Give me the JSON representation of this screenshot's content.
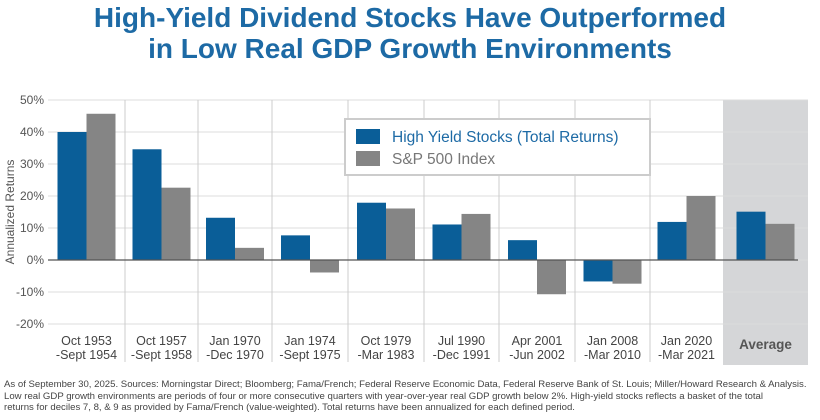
{
  "title_lines": [
    "High-Yield Dividend Stocks Have Outperformed",
    "in Low Real GDP Growth Environments"
  ],
  "chart_data": {
    "type": "bar",
    "title": "High-Yield Dividend Stocks Have Outperformed in Low Real GDP Growth Environments",
    "ylabel": "Annualized Returns",
    "xlabel": "",
    "ylim": [
      -20,
      50
    ],
    "yticks": [
      "50%",
      "40%",
      "30%",
      "20%",
      "10%",
      "0%",
      "-10%",
      "-20%"
    ],
    "grid": true,
    "legend_position": "top-center",
    "categories": [
      [
        "Oct 1953",
        "-Sept 1954"
      ],
      [
        "Oct 1957",
        "-Sept 1958"
      ],
      [
        "Jan 1970",
        "-Dec 1970"
      ],
      [
        "Jan 1974",
        "-Sept 1975"
      ],
      [
        "Oct 1979",
        "-Mar 1983"
      ],
      [
        "Jul 1990",
        "-Dec 1991"
      ],
      [
        "Apr 2001",
        "-Jun 2002"
      ],
      [
        "Jan 2008",
        "-Mar 2010"
      ],
      [
        "Jan 2020",
        "-Mar 2021"
      ],
      [
        "Average"
      ]
    ],
    "series": [
      {
        "name": "High Yield Stocks (Total Returns)",
        "color": "#0a5e98",
        "values": [
          40.0,
          34.6,
          13.2,
          7.7,
          17.9,
          11.1,
          6.2,
          -6.7,
          11.9,
          15.1
        ]
      },
      {
        "name": "S&P 500 Index",
        "color": "#858585",
        "values": [
          45.7,
          22.6,
          3.8,
          -3.9,
          16.1,
          14.4,
          -10.7,
          -7.4,
          20.0,
          11.3
        ]
      }
    ],
    "highlight_color": "#d5d6d8"
  },
  "footnote": [
    "As of September 30, 2025. Sources: Morningstar Direct; Bloomberg; Fama/French; Federal Reserve Economic Data, Federal Reserve Bank of St. Louis; Miller/Howard Research & Analysis.",
    "Low real GDP growth environments are periods of four or more consecutive quarters with year-over-year real GDP growth below 2%. High-yield stocks reflects a basket of the total",
    "returns for deciles 7, 8, & 9 as provided by Fama/French (value-weighted). Total returns have been annualized for each defined period."
  ]
}
